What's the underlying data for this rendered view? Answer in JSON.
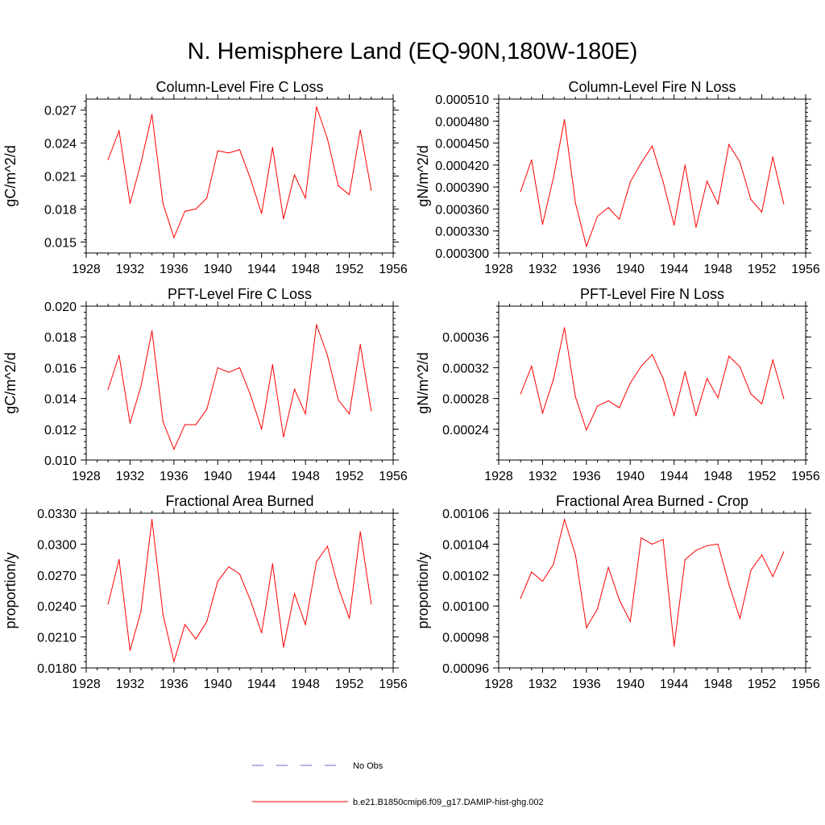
{
  "figure": {
    "title": "N. Hemisphere Land (EQ-90N,180W-180E)",
    "line_color": "#ff0000",
    "obs_color": "#6666cc"
  },
  "legend": {
    "items": [
      {
        "label": "No Obs",
        "style": "dashed",
        "color": "#6666cc"
      },
      {
        "label": "b.e21.B1850cmip6.f09_g17.DAMIP-hist-ghg.002",
        "style": "solid",
        "color": "#ff0000"
      }
    ]
  },
  "chart_data": [
    {
      "type": "line",
      "title": "Column-Level Fire C Loss",
      "ylabel": "gC/m^2/d",
      "xlabel": "",
      "xlim": [
        1928,
        1956
      ],
      "xticks": [
        "1928",
        "1932",
        "1936",
        "1940",
        "1944",
        "1948",
        "1952",
        "1956"
      ],
      "ylim": [
        0.014,
        0.028
      ],
      "yticks": [
        "0.015",
        "0.018",
        "0.021",
        "0.024",
        "0.027"
      ],
      "ytick_values": [
        0.015,
        0.018,
        0.021,
        0.024,
        0.027
      ],
      "x": [
        1930,
        1931,
        1932,
        1933,
        1934,
        1935,
        1936,
        1937,
        1938,
        1939,
        1940,
        1941,
        1942,
        1943,
        1944,
        1945,
        1946,
        1947,
        1948,
        1949,
        1950,
        1951,
        1952,
        1953,
        1954
      ],
      "series": [
        {
          "values": [
            0.0225,
            0.0251,
            0.0185,
            0.0222,
            0.0266,
            0.0185,
            0.0154,
            0.0178,
            0.018,
            0.019,
            0.0233,
            0.0231,
            0.0234,
            0.0207,
            0.0176,
            0.0236,
            0.0171,
            0.0211,
            0.019,
            0.0273,
            0.0244,
            0.0201,
            0.0193,
            0.0252,
            0.0197
          ]
        }
      ]
    },
    {
      "type": "line",
      "title": "Column-Level Fire N Loss",
      "ylabel": "gN/m^2/d",
      "xlabel": "",
      "xlim": [
        1928,
        1956
      ],
      "xticks": [
        "1928",
        "1932",
        "1936",
        "1940",
        "1944",
        "1948",
        "1952",
        "1956"
      ],
      "ylim": [
        0.0003,
        0.00051
      ],
      "yticks": [
        "0.000300",
        "0.000330",
        "0.000360",
        "0.000390",
        "0.000420",
        "0.000450",
        "0.000480",
        "0.000510"
      ],
      "ytick_values": [
        0.0003,
        0.00033,
        0.00036,
        0.00039,
        0.00042,
        0.00045,
        0.00048,
        0.00051
      ],
      "x": [
        1930,
        1931,
        1932,
        1933,
        1934,
        1935,
        1936,
        1937,
        1938,
        1939,
        1940,
        1941,
        1942,
        1943,
        1944,
        1945,
        1946,
        1947,
        1948,
        1949,
        1950,
        1951,
        1952,
        1953,
        1954
      ],
      "series": [
        {
          "values": [
            0.000384,
            0.000427,
            0.000339,
            0.000403,
            0.000482,
            0.000368,
            0.000309,
            0.00035,
            0.000362,
            0.000346,
            0.000397,
            0.000423,
            0.000446,
            0.000397,
            0.000338,
            0.00042,
            0.000335,
            0.000398,
            0.000367,
            0.000448,
            0.000424,
            0.000373,
            0.000356,
            0.000431,
            0.000367
          ]
        }
      ]
    },
    {
      "type": "line",
      "title": "PFT-Level Fire C Loss",
      "ylabel": "gC/m^2/d",
      "xlabel": "",
      "xlim": [
        1928,
        1956
      ],
      "xticks": [
        "1928",
        "1932",
        "1936",
        "1940",
        "1944",
        "1948",
        "1952",
        "1956"
      ],
      "ylim": [
        0.01,
        0.02
      ],
      "yticks": [
        "0.010",
        "0.012",
        "0.014",
        "0.016",
        "0.018",
        "0.020"
      ],
      "ytick_values": [
        0.01,
        0.012,
        0.014,
        0.016,
        0.018,
        0.02
      ],
      "x": [
        1930,
        1931,
        1932,
        1933,
        1934,
        1935,
        1936,
        1937,
        1938,
        1939,
        1940,
        1941,
        1942,
        1943,
        1944,
        1945,
        1946,
        1947,
        1948,
        1949,
        1950,
        1951,
        1952,
        1953,
        1954
      ],
      "series": [
        {
          "values": [
            0.0146,
            0.0168,
            0.0124,
            0.0148,
            0.0184,
            0.0125,
            0.0107,
            0.0123,
            0.0123,
            0.0133,
            0.016,
            0.0157,
            0.016,
            0.0142,
            0.012,
            0.0162,
            0.0115,
            0.0146,
            0.013,
            0.0188,
            0.0168,
            0.0139,
            0.013,
            0.0175,
            0.0132
          ]
        }
      ]
    },
    {
      "type": "line",
      "title": "PFT-Level Fire N Loss",
      "ylabel": "gN/m^2/d",
      "xlabel": "",
      "xlim": [
        1928,
        1956
      ],
      "xticks": [
        "1928",
        "1932",
        "1936",
        "1940",
        "1944",
        "1948",
        "1952",
        "1956"
      ],
      "ylim": [
        0.0002,
        0.0004
      ],
      "yticks": [
        "0.00024",
        "0.00028",
        "0.00032",
        "0.00036"
      ],
      "ytick_values": [
        0.00024,
        0.00028,
        0.00032,
        0.00036
      ],
      "x": [
        1930,
        1931,
        1932,
        1933,
        1934,
        1935,
        1936,
        1937,
        1938,
        1939,
        1940,
        1941,
        1942,
        1943,
        1944,
        1945,
        1946,
        1947,
        1948,
        1949,
        1950,
        1951,
        1952,
        1953,
        1954
      ],
      "series": [
        {
          "values": [
            0.000286,
            0.000322,
            0.000261,
            0.000305,
            0.000372,
            0.000282,
            0.000239,
            0.00027,
            0.000277,
            0.000268,
            0.0003,
            0.000322,
            0.000337,
            0.000306,
            0.000258,
            0.000315,
            0.000258,
            0.000306,
            0.000281,
            0.000335,
            0.000321,
            0.000286,
            0.000273,
            0.00033,
            0.00028
          ]
        }
      ]
    },
    {
      "type": "line",
      "title": "Fractional Area Burned",
      "ylabel": "proportion/y",
      "xlabel": "",
      "xlim": [
        1928,
        1956
      ],
      "xticks": [
        "1928",
        "1932",
        "1936",
        "1940",
        "1944",
        "1948",
        "1952",
        "1956"
      ],
      "ylim": [
        0.018,
        0.033
      ],
      "yticks": [
        "0.0180",
        "0.0210",
        "0.0240",
        "0.0270",
        "0.0300",
        "0.0330"
      ],
      "ytick_values": [
        0.018,
        0.021,
        0.024,
        0.027,
        0.03,
        0.033
      ],
      "x": [
        1930,
        1931,
        1932,
        1933,
        1934,
        1935,
        1936,
        1937,
        1938,
        1939,
        1940,
        1941,
        1942,
        1943,
        1944,
        1945,
        1946,
        1947,
        1948,
        1949,
        1950,
        1951,
        1952,
        1953,
        1954
      ],
      "series": [
        {
          "values": [
            0.0242,
            0.0285,
            0.0197,
            0.0235,
            0.0324,
            0.0232,
            0.0186,
            0.0222,
            0.0208,
            0.0225,
            0.0264,
            0.0278,
            0.0271,
            0.0245,
            0.0214,
            0.0281,
            0.02,
            0.0252,
            0.0222,
            0.0283,
            0.0298,
            0.0258,
            0.0228,
            0.0312,
            0.0242
          ]
        }
      ]
    },
    {
      "type": "line",
      "title": "Fractional Area Burned - Crop",
      "ylabel": "proportion/y",
      "xlabel": "",
      "xlim": [
        1928,
        1956
      ],
      "xticks": [
        "1928",
        "1932",
        "1936",
        "1940",
        "1944",
        "1948",
        "1952",
        "1956"
      ],
      "ylim": [
        0.00096,
        0.00106
      ],
      "yticks": [
        "0.00096",
        "0.00098",
        "0.00100",
        "0.00102",
        "0.00104",
        "0.00106"
      ],
      "ytick_values": [
        0.00096,
        0.00098,
        0.001,
        0.00102,
        0.00104,
        0.00106
      ],
      "x": [
        1930,
        1931,
        1932,
        1933,
        1934,
        1935,
        1936,
        1937,
        1938,
        1939,
        1940,
        1941,
        1942,
        1943,
        1944,
        1945,
        1946,
        1947,
        1948,
        1949,
        1950,
        1951,
        1952,
        1953,
        1954
      ],
      "series": [
        {
          "values": [
            0.001005,
            0.001022,
            0.001016,
            0.001027,
            0.001056,
            0.001033,
            0.000986,
            0.000998,
            0.001025,
            0.001004,
            0.00099,
            0.001044,
            0.00104,
            0.001043,
            0.000974,
            0.00103,
            0.001036,
            0.001039,
            0.00104,
            0.001014,
            0.000992,
            0.001023,
            0.001033,
            0.001019,
            0.001035
          ]
        }
      ]
    }
  ]
}
